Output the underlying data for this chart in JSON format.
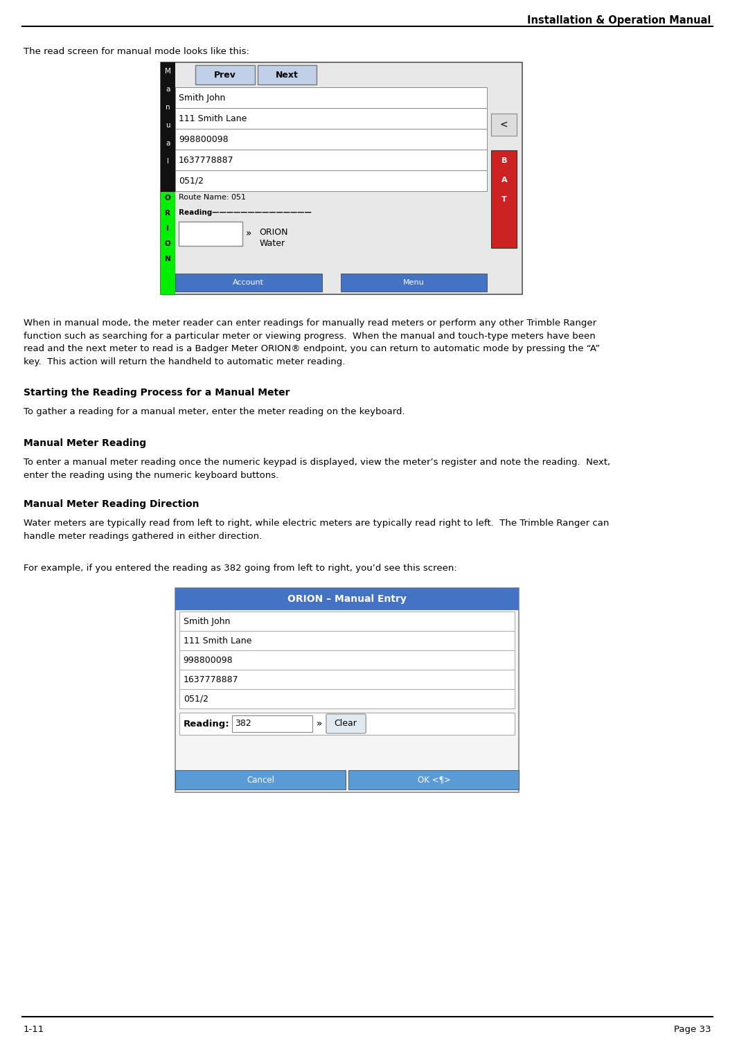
{
  "header_text": "Installation & Operation Manual",
  "footer_left": "1-11",
  "footer_right": "Page 33",
  "intro_text": "The read screen for manual mode looks like this:",
  "screen1": {
    "fields": [
      "Smith John",
      "111 Smith Lane",
      "998800098",
      "1637778887",
      "051/2"
    ],
    "route_name": "Route Name: 051",
    "btn1": "Prev",
    "btn2": "Next",
    "btn_account": "Account",
    "btn_menu": "Menu",
    "orion_water": "ORION\nWater"
  },
  "para1": "When in manual mode, the meter reader can enter readings for manually read meters or perform any other Trimble Ranger\nfunction such as searching for a particular meter or viewing progress.  When the manual and touch-type meters have been\nread and the next meter to read is a Badger Meter ORION® endpoint, you can return to automatic mode by pressing the “A”\nkey.  This action will return the handheld to automatic meter reading.",
  "heading1": "Starting the Reading Process for a Manual Meter",
  "para2": "To gather a reading for a manual meter, enter the meter reading on the keyboard.",
  "heading2": "Manual Meter Reading",
  "para3": "To enter a manual meter reading once the numeric keypad is displayed, view the meter’s register and note the reading.  Next,\nenter the reading using the numeric keyboard buttons.",
  "heading3": "Manual Meter Reading Direction",
  "para4": "Water meters are typically read from left to right, while electric meters are typically read right to left.  The Trimble Ranger can\nhandle meter readings gathered in either direction.",
  "para5": "For example, if you entered the reading as 382 going from left to right, you’d see this screen:",
  "screen2": {
    "title": "ORION – Manual Entry",
    "fields": [
      "Smith John",
      "111 Smith Lane",
      "998800098",
      "1637778887",
      "051/2"
    ],
    "reading_value": "382",
    "clear_btn": "Clear",
    "cancel_btn": "Cancel",
    "ok_btn": "OK <¶>"
  },
  "bg_color": "#ffffff",
  "text_color": "#000000",
  "btn_bg": "#4472C4",
  "screen2_btn_bg": "#5b9bd5"
}
